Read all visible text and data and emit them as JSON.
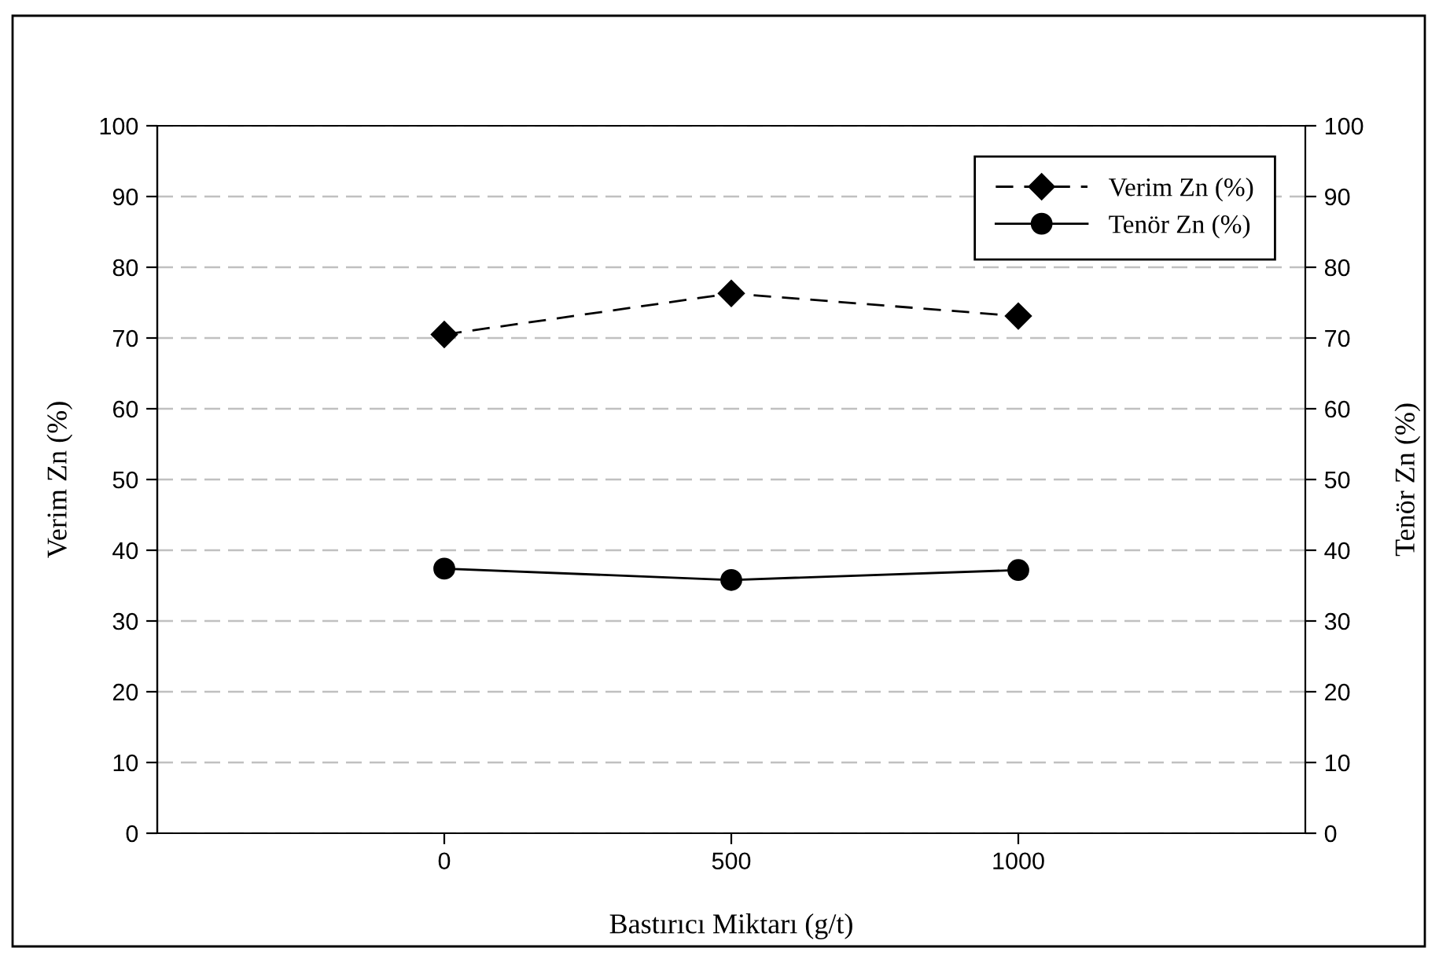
{
  "chart_data": {
    "type": "line",
    "xlabel": "Bastırıcı Miktarı (g/t)",
    "ylabel": "Verim Zn (%)",
    "y2label": "Tenör Zn (%)",
    "x": [
      0,
      500,
      1000
    ],
    "xlim": [
      -500,
      1500
    ],
    "xticks": [
      0,
      500,
      1000
    ],
    "ylim": [
      0,
      100
    ],
    "yticks": [
      0,
      10,
      20,
      30,
      40,
      50,
      60,
      70,
      80,
      90,
      100
    ],
    "y2lim": [
      0,
      100
    ],
    "y2ticks": [
      0,
      10,
      20,
      30,
      40,
      50,
      60,
      70,
      80,
      90,
      100
    ],
    "grid": "y",
    "legend": "top right",
    "series": [
      {
        "name": "Verim Zn (%)",
        "color": "#000000",
        "marker": "diamond",
        "line_style": "dashed",
        "values": [
          70.5,
          76.3,
          73.1
        ]
      },
      {
        "name": "Tenör Zn (%)",
        "color": "#000000",
        "marker": "circle",
        "line_style": "solid",
        "axis": "y2",
        "values": [
          37.4,
          35.8,
          37.2
        ]
      }
    ]
  }
}
